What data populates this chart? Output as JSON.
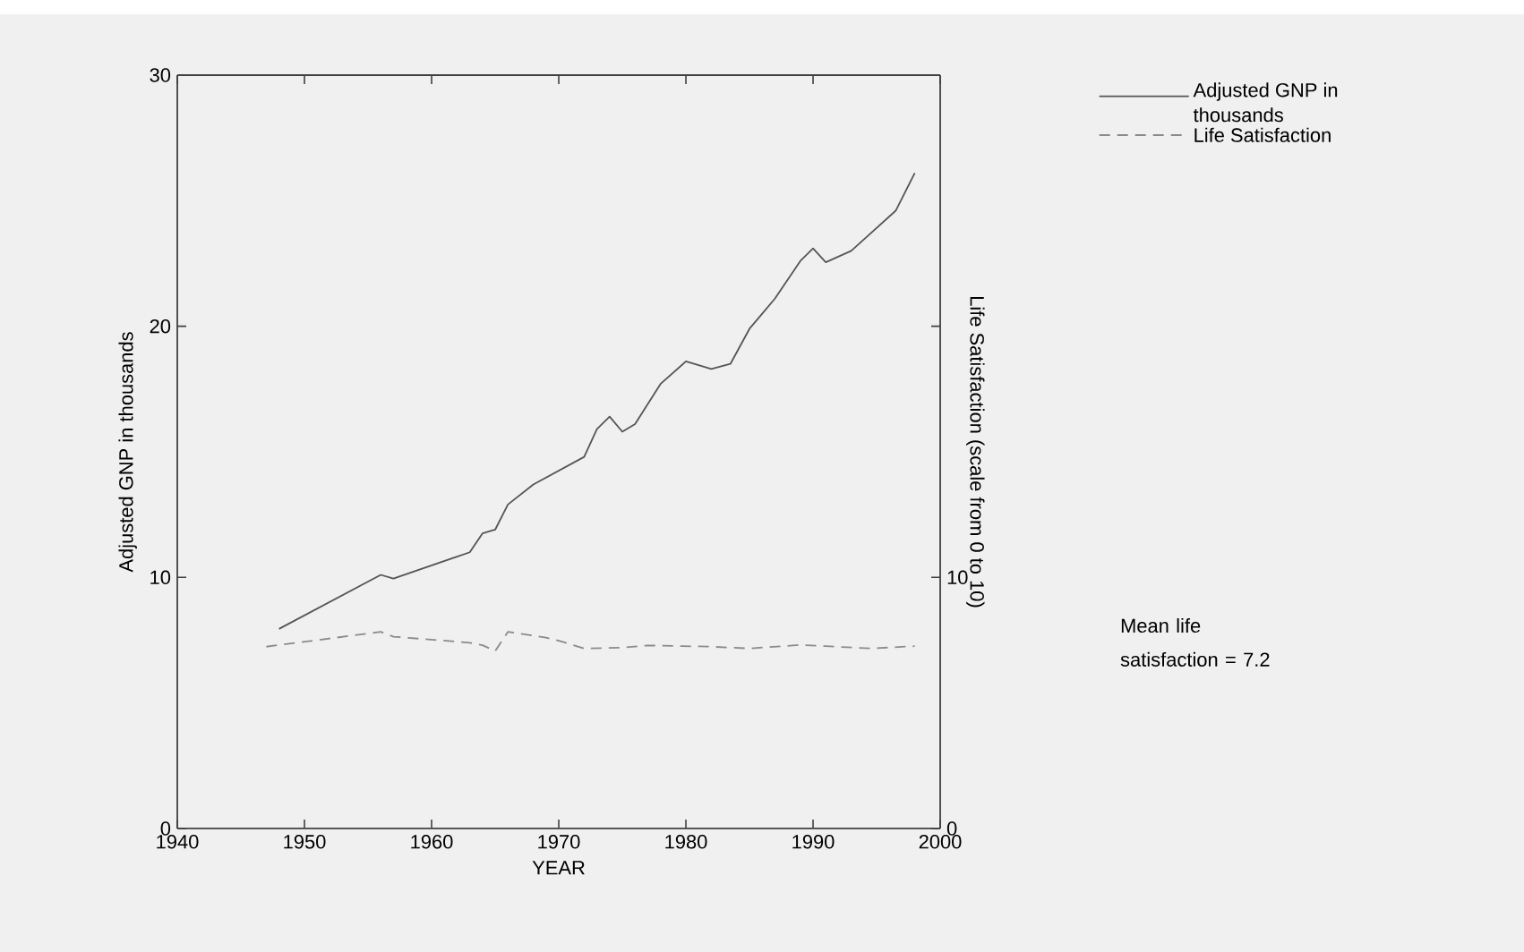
{
  "chart_data": {
    "type": "line",
    "xlabel": "YEAR",
    "ylabel": "Adjusted GNP in thousands",
    "y2label": "Life Satisfaction (scale from 0 to 10)",
    "xlim": [
      1940,
      2000
    ],
    "xticks": [
      1940,
      1950,
      1960,
      1970,
      1980,
      1990,
      2000
    ],
    "ylim": [
      0,
      30
    ],
    "yticks": [
      0,
      10,
      20,
      30
    ],
    "y2lim": [
      0,
      30
    ],
    "y2ticks": [
      0,
      10,
      {
        "value": 20,
        "label": null
      },
      {
        "value": 30,
        "label": null
      }
    ],
    "legend": "right",
    "annotations": [
      "Mean life satisfaction = 7.2"
    ],
    "series": [
      {
        "name": "Adjusted GNP in thousands",
        "color": "#555555",
        "line_style": "solid",
        "x": [
          1948,
          1956,
          1957,
          1963,
          1964,
          1965,
          1966,
          1968,
          1972,
          1973,
          1974,
          1975,
          1976,
          1978,
          1980,
          1982,
          1983.5,
          1985,
          1986,
          1987,
          1989,
          1990,
          1991,
          1993,
          1996.5,
          1998
        ],
        "values": [
          7.95,
          10.1,
          9.95,
          11.0,
          11.75,
          11.9,
          12.9,
          13.7,
          14.8,
          15.9,
          16.4,
          15.8,
          16.1,
          17.7,
          18.6,
          18.3,
          18.5,
          19.9,
          20.5,
          21.1,
          22.6,
          23.1,
          22.55,
          23.0,
          24.6,
          26.1
        ]
      },
      {
        "name": "Life Satisfaction",
        "color": "#8a8a8a",
        "line_style": "dashed",
        "axis": "y2",
        "x": [
          1947,
          1956,
          1957,
          1963,
          1964,
          1965,
          1966,
          1969,
          1970,
          1972,
          1975,
          1977,
          1982,
          1985,
          1989,
          1991,
          1994.5,
          1998
        ],
        "values": [
          7.24,
          7.83,
          7.64,
          7.4,
          7.3,
          7.07,
          7.83,
          7.6,
          7.48,
          7.17,
          7.2,
          7.29,
          7.24,
          7.17,
          7.31,
          7.26,
          7.17,
          7.26
        ]
      }
    ]
  }
}
